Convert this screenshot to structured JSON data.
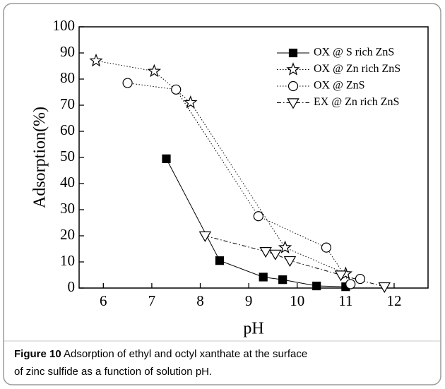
{
  "chart_data": {
    "type": "scatter",
    "caption_label": "Figure 10",
    "caption": "Adsorption of ethyl and octyl xanthate at the surface of zinc sulfide as a function of solution pH.",
    "x_label": "pH",
    "y_label": "Adsorption(%)",
    "xlim": [
      5.5,
      12.7
    ],
    "ylim": [
      0,
      100
    ],
    "xticks": [
      6,
      7,
      8,
      9,
      10,
      11,
      12
    ],
    "yticks": [
      0,
      10,
      20,
      30,
      40,
      50,
      60,
      70,
      80,
      90,
      100
    ],
    "legend": "upper right",
    "series": [
      {
        "name": "OX @ S rich ZnS",
        "color": "#000000",
        "marker": "square",
        "line_style": "solid",
        "x": [
          7.3,
          8.4,
          9.3,
          9.7,
          10.4,
          11.0
        ],
        "y": [
          49.5,
          10.5,
          4.2,
          3.2,
          0.8,
          0.5
        ]
      },
      {
        "name": "OX @ Zn rich ZnS",
        "color": "#000000",
        "marker": "star",
        "line_style": "dotted",
        "x": [
          5.85,
          7.05,
          7.8,
          9.75,
          11.0
        ],
        "y": [
          87,
          83,
          71,
          15.5,
          5.5
        ]
      },
      {
        "name": "OX @ ZnS",
        "color": "#000000",
        "marker": "circle",
        "line_style": "dotted",
        "x": [
          6.5,
          7.5,
          9.2,
          10.6,
          11.1,
          11.3
        ],
        "y": [
          78.5,
          76,
          27.5,
          15.5,
          1.5,
          3.5
        ]
      },
      {
        "name": "EX @ Zn rich ZnS",
        "color": "#000000",
        "marker": "triangle-down",
        "line_style": "dashdot",
        "x": [
          8.1,
          9.35,
          9.55,
          9.85,
          10.9,
          11.8
        ],
        "y": [
          20,
          14,
          13,
          10.5,
          5,
          0.5
        ]
      }
    ]
  }
}
